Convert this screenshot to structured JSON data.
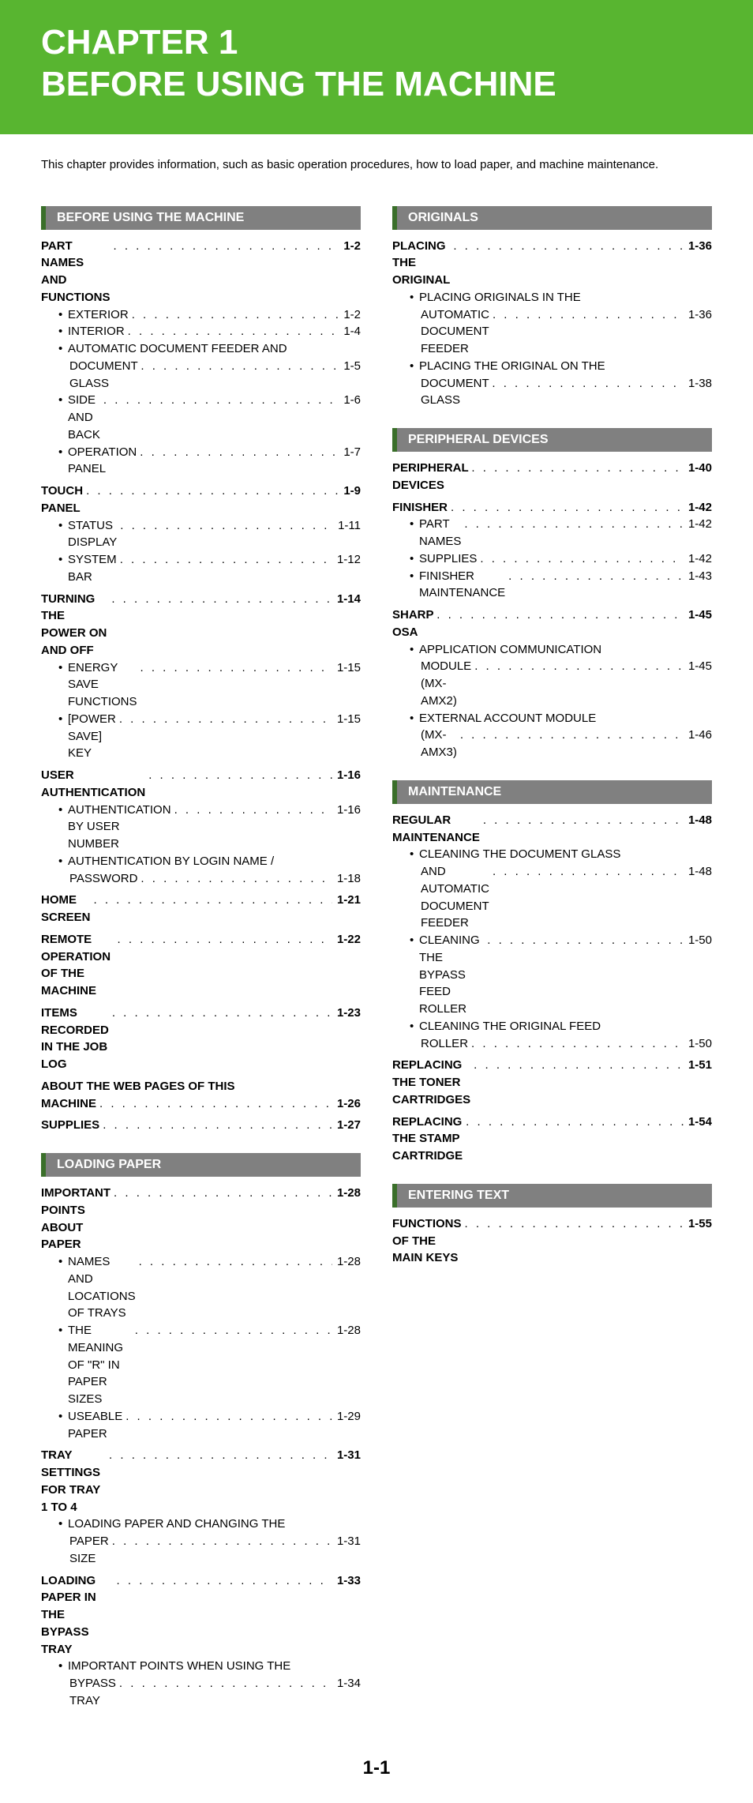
{
  "banner": {
    "line1": "CHAPTER 1",
    "line2": "BEFORE USING THE MACHINE",
    "bg_color": "#58b530",
    "text_color": "#ffffff",
    "font_size_pt": 44
  },
  "intro": "This chapter provides information, such as basic operation procedures, how to load paper, and machine maintenance.",
  "dots": ". . . . . . . . . . . . . . . . . . . . . . . . . . . . . . . . . . . . . . . . . . . . . . . . . . . . . . . . . . . .",
  "page_number": "1-1",
  "styling": {
    "section_head_bg": "#808080",
    "section_head_border": "#3a6f2a",
    "section_head_text": "#ffffff",
    "body_text_color": "#000000",
    "font_family": "Arial",
    "top_entry_weight": 700,
    "sub_entry_weight": 400,
    "body_font_size_pt": 15,
    "section_head_font_size_pt": 16
  },
  "left": [
    {
      "title": "BEFORE USING THE MACHINE",
      "entries": [
        {
          "level": "top",
          "label": "PART NAMES AND FUNCTIONS",
          "page": "1-2"
        },
        {
          "level": "sub",
          "label": "EXTERIOR",
          "page": "1-2"
        },
        {
          "level": "sub",
          "label": "INTERIOR",
          "page": "1-4"
        },
        {
          "level": "sub",
          "label": "AUTOMATIC DOCUMENT FEEDER AND"
        },
        {
          "level": "cont",
          "label": "DOCUMENT GLASS",
          "page": "1-5"
        },
        {
          "level": "sub",
          "label": "SIDE AND BACK",
          "page": "1-6"
        },
        {
          "level": "sub",
          "label": "OPERATION PANEL",
          "page": "1-7"
        },
        {
          "level": "top",
          "label": "TOUCH PANEL",
          "page": "1-9"
        },
        {
          "level": "sub",
          "label": "STATUS DISPLAY",
          "page": "1-11"
        },
        {
          "level": "sub",
          "label": "SYSTEM BAR",
          "page": "1-12"
        },
        {
          "level": "top",
          "label": "TURNING THE POWER ON AND OFF",
          "page": "1-14"
        },
        {
          "level": "sub",
          "label": "ENERGY SAVE FUNCTIONS",
          "page": "1-15"
        },
        {
          "level": "sub",
          "label": "[POWER SAVE] KEY",
          "page": "1-15"
        },
        {
          "level": "top",
          "label": "USER AUTHENTICATION",
          "page": "1-16"
        },
        {
          "level": "sub",
          "label": "AUTHENTICATION BY USER NUMBER",
          "page": "1-16"
        },
        {
          "level": "sub",
          "label": "AUTHENTICATION BY LOGIN NAME /"
        },
        {
          "level": "cont",
          "label": "PASSWORD",
          "page": "1-18"
        },
        {
          "level": "top",
          "label": "HOME SCREEN",
          "page": "1-21"
        },
        {
          "level": "top",
          "label": "REMOTE OPERATION OF THE MACHINE",
          "page": "1-22"
        },
        {
          "level": "top",
          "label": "ITEMS RECORDED IN THE JOB LOG",
          "page": "1-23"
        },
        {
          "level": "top",
          "label": "ABOUT THE WEB PAGES OF THIS"
        },
        {
          "level": "top-cont",
          "label": "MACHINE",
          "page": "1-26"
        },
        {
          "level": "top",
          "label": "SUPPLIES",
          "page": "1-27"
        }
      ]
    },
    {
      "title": "LOADING PAPER",
      "entries": [
        {
          "level": "top",
          "label": "IMPORTANT POINTS ABOUT PAPER",
          "page": "1-28"
        },
        {
          "level": "sub",
          "label": "NAMES AND LOCATIONS OF TRAYS",
          "page": "1-28"
        },
        {
          "level": "sub",
          "label": "THE MEANING OF \"R\" IN PAPER SIZES",
          "page": "1-28"
        },
        {
          "level": "sub",
          "label": "USEABLE PAPER",
          "page": "1-29"
        },
        {
          "level": "top",
          "label": "TRAY SETTINGS FOR TRAY 1 TO 4",
          "page": "1-31"
        },
        {
          "level": "sub",
          "label": "LOADING PAPER AND CHANGING THE"
        },
        {
          "level": "cont",
          "label": "PAPER SIZE",
          "page": "1-31"
        },
        {
          "level": "top",
          "label": "LOADING PAPER IN THE BYPASS TRAY",
          "page": "1-33"
        },
        {
          "level": "sub",
          "label": "IMPORTANT POINTS WHEN USING THE"
        },
        {
          "level": "cont",
          "label": "BYPASS TRAY",
          "page": "1-34"
        }
      ]
    }
  ],
  "right": [
    {
      "title": "ORIGINALS",
      "entries": [
        {
          "level": "top",
          "label": "PLACING THE ORIGINAL",
          "page": "1-36"
        },
        {
          "level": "sub",
          "label": "PLACING ORIGINALS IN THE"
        },
        {
          "level": "cont",
          "label": "AUTOMATIC DOCUMENT FEEDER",
          "page": "1-36"
        },
        {
          "level": "sub",
          "label": "PLACING THE ORIGINAL ON THE"
        },
        {
          "level": "cont",
          "label": "DOCUMENT GLASS",
          "page": "1-38"
        }
      ]
    },
    {
      "title": "PERIPHERAL DEVICES",
      "entries": [
        {
          "level": "top",
          "label": "PERIPHERAL DEVICES",
          "page": "1-40"
        },
        {
          "level": "top",
          "label": "FINISHER",
          "page": "1-42"
        },
        {
          "level": "sub",
          "label": "PART NAMES",
          "page": "1-42"
        },
        {
          "level": "sub",
          "label": "SUPPLIES",
          "page": "1-42"
        },
        {
          "level": "sub",
          "label": "FINISHER MAINTENANCE",
          "page": "1-43"
        },
        {
          "level": "top",
          "label": "SHARP OSA",
          "page": "1-45"
        },
        {
          "level": "sub",
          "label": "APPLICATION COMMUNICATION"
        },
        {
          "level": "cont",
          "label": "MODULE (MX-AMX2)",
          "page": "1-45"
        },
        {
          "level": "sub",
          "label": "EXTERNAL ACCOUNT MODULE"
        },
        {
          "level": "cont",
          "label": "(MX-AMX3)",
          "page": "1-46"
        }
      ]
    },
    {
      "title": "MAINTENANCE",
      "entries": [
        {
          "level": "top",
          "label": "REGULAR MAINTENANCE",
          "page": "1-48"
        },
        {
          "level": "sub",
          "label": "CLEANING THE DOCUMENT GLASS"
        },
        {
          "level": "cont",
          "label": "AND AUTOMATIC DOCUMENT FEEDER",
          "page": "1-48"
        },
        {
          "level": "sub",
          "label": "CLEANING THE BYPASS FEED ROLLER",
          "page": "1-50"
        },
        {
          "level": "sub",
          "label": "CLEANING THE ORIGINAL FEED"
        },
        {
          "level": "cont",
          "label": "ROLLER",
          "page": "1-50"
        },
        {
          "level": "top",
          "label": "REPLACING THE TONER CARTRIDGES",
          "page": "1-51"
        },
        {
          "level": "top",
          "label": "REPLACING THE STAMP CARTRIDGE",
          "page": "1-54"
        }
      ]
    },
    {
      "title": "ENTERING TEXT",
      "entries": [
        {
          "level": "top",
          "label": "FUNCTIONS OF THE MAIN KEYS",
          "page": "1-55"
        }
      ]
    }
  ]
}
